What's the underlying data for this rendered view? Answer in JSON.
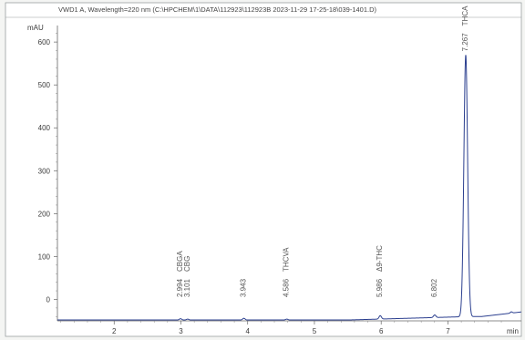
{
  "chart_data": {
    "type": "line",
    "title": "VWD1 A, Wavelength=220 nm (C:\\HPCHEM\\1\\DATA\\112923\\112923B 2023-11-29 17-25-18\\039-1401.D)",
    "ylabel": "mAU",
    "xlabel": "",
    "x_unit_label": "min",
    "xlim": [
      1.15,
      8.1
    ],
    "ylim": [
      -50,
      630
    ],
    "x_ticks": [
      2,
      3,
      4,
      5,
      6,
      7
    ],
    "y_ticks": [
      0,
      100,
      200,
      300,
      400,
      500,
      600
    ],
    "grid": false,
    "baseline": -48,
    "peaks": [
      {
        "rt": 2.994,
        "rt_label": "2.994",
        "name": "CBGA",
        "height": 3
      },
      {
        "rt": 3.101,
        "rt_label": "3.101",
        "name": "CBG",
        "height": 2
      },
      {
        "rt": 3.943,
        "rt_label": "3.943",
        "name": "",
        "height": 4
      },
      {
        "rt": 4.586,
        "rt_label": "4.586",
        "name": "THCVA",
        "height": 2
      },
      {
        "rt": 5.986,
        "rt_label": "5.986",
        "name": "Δ9-THC",
        "height": 8
      },
      {
        "rt": 6.802,
        "rt_label": "6.802",
        "name": "",
        "height": 6
      },
      {
        "rt": 7.267,
        "rt_label": "7.267",
        "name": "THCA",
        "height": 610
      }
    ]
  }
}
